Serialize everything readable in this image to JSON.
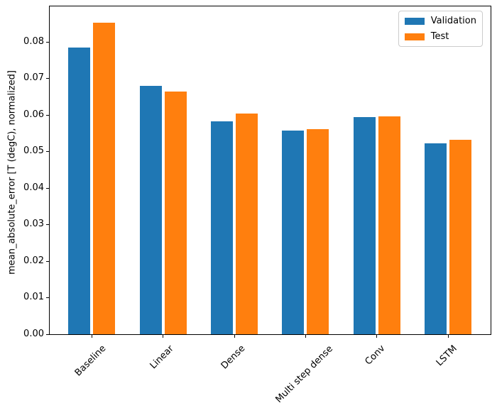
{
  "chart_data": {
    "type": "bar",
    "title": "",
    "xlabel": "",
    "ylabel": "mean_absolute_error [T (degC), normalized]",
    "categories": [
      "Baseline",
      "Linear",
      "Dense",
      "Multi step dense",
      "Conv",
      "LSTM"
    ],
    "series": [
      {
        "name": "Validation",
        "color": "#1f77b4",
        "values": [
          0.0785,
          0.0679,
          0.0582,
          0.0557,
          0.0594,
          0.0522
        ]
      },
      {
        "name": "Test",
        "color": "#ff7f0e",
        "values": [
          0.0853,
          0.0664,
          0.0603,
          0.0561,
          0.0597,
          0.0532
        ]
      }
    ],
    "ylim": [
      0,
      0.0897
    ],
    "yticks": [
      "0.00",
      "0.01",
      "0.02",
      "0.03",
      "0.04",
      "0.05",
      "0.06",
      "0.07",
      "0.08"
    ],
    "xtick_rotation": 45,
    "grid": false,
    "legend": {
      "position": "upper right",
      "entries": [
        "Validation",
        "Test"
      ]
    },
    "axis_color": "#000000",
    "background": "#ffffff"
  }
}
